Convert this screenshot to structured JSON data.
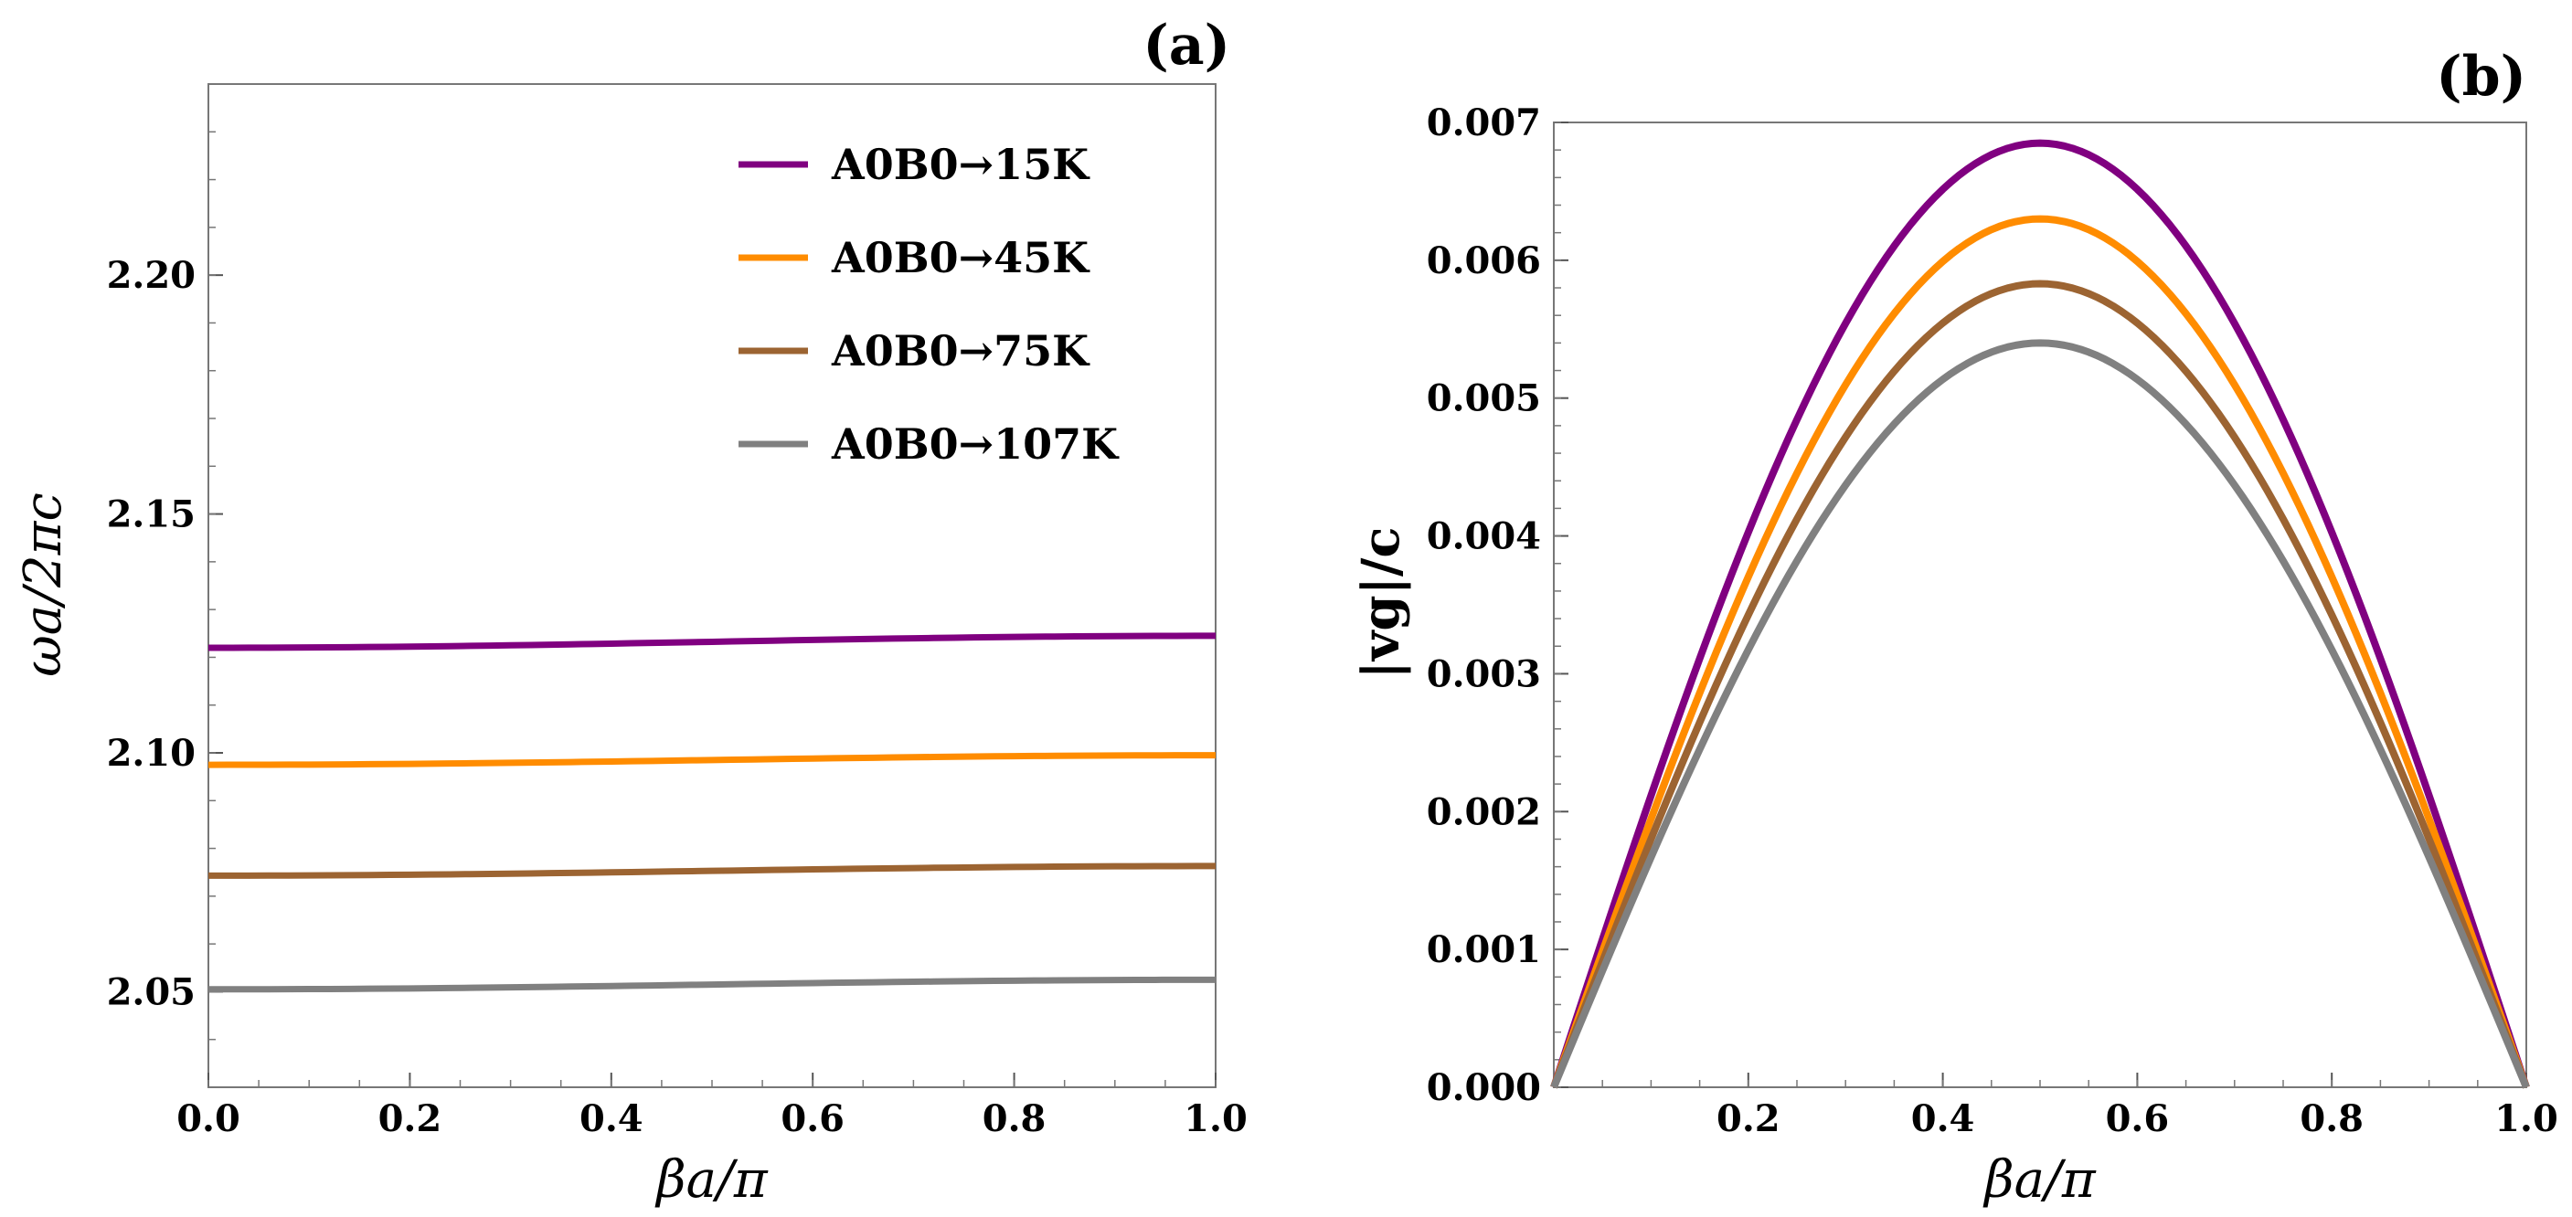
{
  "chart_data": [
    {
      "panel": "(a)",
      "type": "line",
      "xlabel": "βa/π",
      "ylabel": "ωa/2πc",
      "xlim": [
        0.0,
        1.0
      ],
      "ylim": [
        2.03,
        2.24
      ],
      "x_ticks": [
        0.0,
        0.2,
        0.4,
        0.6,
        0.8,
        1.0
      ],
      "x_tick_labels": [
        "0.0",
        "0.2",
        "0.4",
        "0.6",
        "0.8",
        "1.0"
      ],
      "y_ticks": [
        2.05,
        2.1,
        2.15,
        2.2
      ],
      "y_tick_labels": [
        "2.05",
        "2.10",
        "2.15",
        "2.20"
      ],
      "legend": "top-right",
      "series": [
        {
          "name": "A0B0→15K",
          "color": "#800080",
          "x": [
            0.0,
            1.0
          ],
          "values": [
            2.122,
            2.1245
          ]
        },
        {
          "name": "A0B0→45K",
          "color": "#FF8C00",
          "x": [
            0.0,
            1.0
          ],
          "values": [
            2.0975,
            2.0995
          ]
        },
        {
          "name": "A0B0→75K",
          "color": "#9C6432",
          "x": [
            0.0,
            1.0
          ],
          "values": [
            2.0743,
            2.0763
          ]
        },
        {
          "name": "A0B0→107K",
          "color": "#808080",
          "x": [
            0.0,
            1.0
          ],
          "values": [
            2.0505,
            2.0525
          ]
        }
      ]
    },
    {
      "panel": "(b)",
      "type": "line",
      "xlabel": "βa/π",
      "ylabel": "|vg|/c",
      "xlim": [
        0.0,
        1.0
      ],
      "ylim": [
        0.0,
        0.007
      ],
      "x_ticks": [
        0.2,
        0.4,
        0.6,
        0.8,
        1.0
      ],
      "x_tick_labels": [
        "0.2",
        "0.4",
        "0.6",
        "0.8",
        "1.0"
      ],
      "y_ticks": [
        0.0,
        0.001,
        0.002,
        0.003,
        0.004,
        0.005,
        0.006,
        0.007
      ],
      "y_tick_labels": [
        "0.000",
        "0.001",
        "0.002",
        "0.003",
        "0.004",
        "0.005",
        "0.006",
        "0.007"
      ],
      "series": [
        {
          "name": "A0B0→15K",
          "color": "#800080",
          "shape": "sin(pi x)",
          "peak_x": 0.5,
          "peak": 0.00685
        },
        {
          "name": "A0B0→45K",
          "color": "#FF8C00",
          "shape": "sin(pi x)",
          "peak_x": 0.5,
          "peak": 0.0063
        },
        {
          "name": "A0B0→75K",
          "color": "#9C6432",
          "shape": "sin(pi x)",
          "peak_x": 0.5,
          "peak": 0.00583
        },
        {
          "name": "A0B0→107K",
          "color": "#808080",
          "shape": "sin(pi x)",
          "peak_x": 0.5,
          "peak": 0.0054
        }
      ]
    }
  ]
}
